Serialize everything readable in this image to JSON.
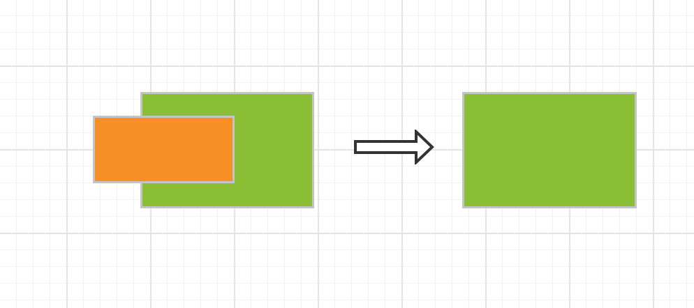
{
  "diagram": {
    "title": "",
    "before": {
      "background_shape": {
        "fill": "#8abe34",
        "stroke": "#c4c4c4"
      },
      "overlay_shape": {
        "fill": "#f78f27",
        "stroke": "#c4c4c4"
      }
    },
    "transition": {
      "icon": "right-arrow-icon",
      "stroke": "#333333",
      "fill": "#ffffff"
    },
    "after": {
      "result_shape": {
        "fill": "#8abe34",
        "stroke": "#c4c4c4"
      }
    }
  }
}
